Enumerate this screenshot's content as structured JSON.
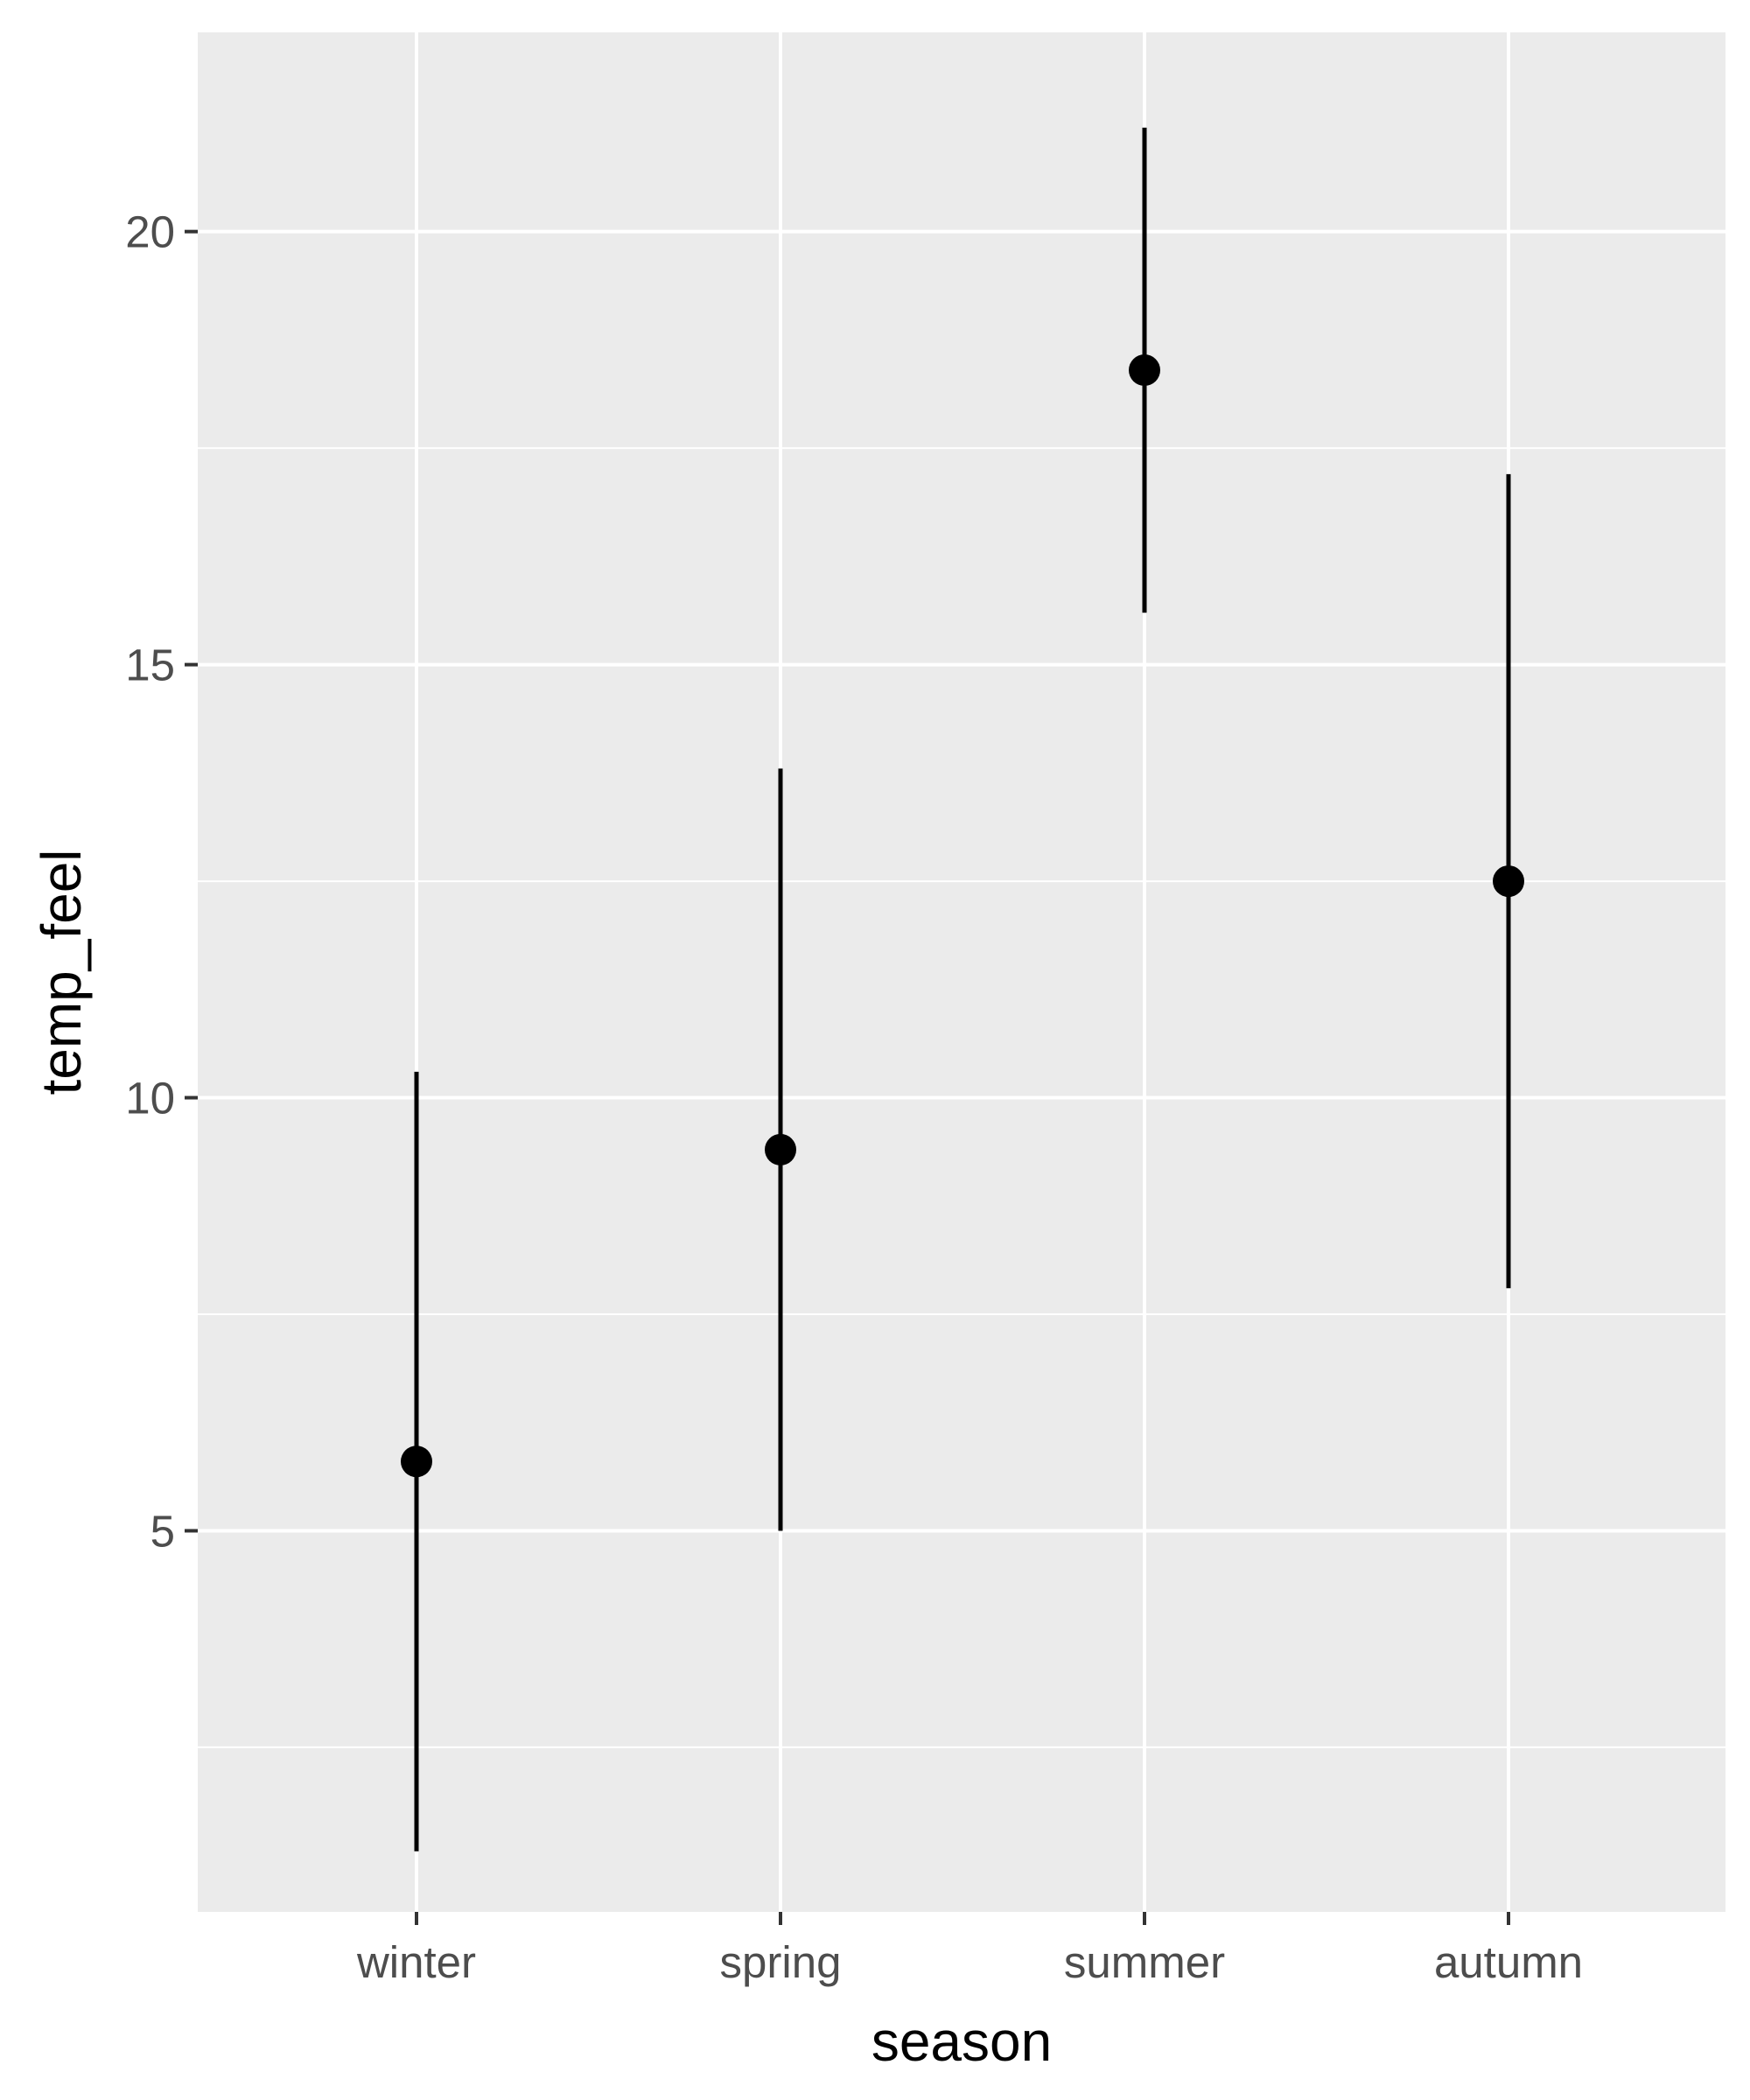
{
  "chart_data": {
    "type": "pointrange",
    "title": "",
    "xlabel": "season",
    "ylabel": "temp_feel",
    "categories": [
      "winter",
      "spring",
      "summer",
      "autumn"
    ],
    "series": [
      {
        "values": [
          5.8,
          9.4,
          18.4,
          12.5
        ],
        "lower": [
          1.3,
          5.0,
          15.6,
          7.8
        ],
        "upper": [
          10.3,
          13.8,
          21.2,
          17.2
        ]
      }
    ],
    "ylim": [
      0.6,
      22.3
    ],
    "yticks": [
      5,
      10,
      15,
      20
    ],
    "ytick_labels": [
      "5",
      "10",
      "15",
      "20"
    ],
    "yminor": [
      2.5,
      7.5,
      12.5,
      17.5
    ],
    "grid": true,
    "legend": "none",
    "colors": {
      "panel_background": "#ebebeb",
      "grid": "#ffffff",
      "marks": "#000000",
      "tick_label": "#4d4d4d"
    }
  }
}
